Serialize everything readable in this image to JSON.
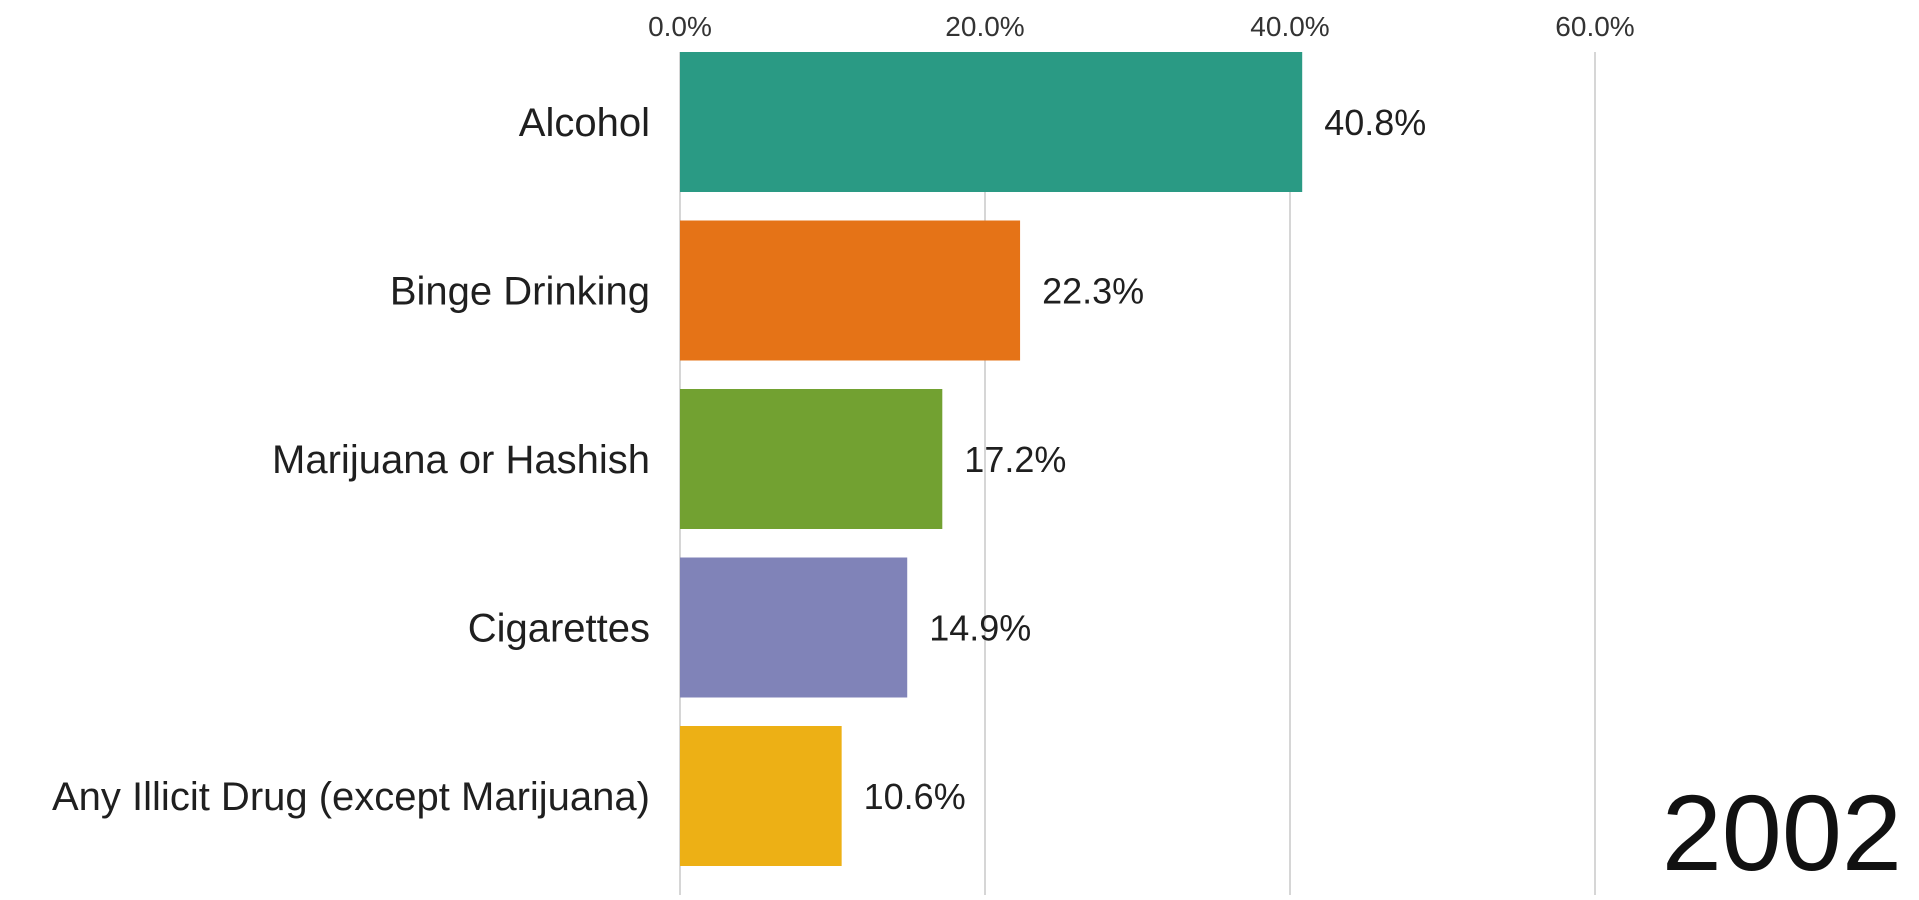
{
  "chart_data": {
    "type": "bar",
    "orientation": "horizontal",
    "title": "",
    "xlabel": "",
    "ylabel": "",
    "categories": [
      "Alcohol",
      "Binge Drinking",
      "Marijuana or Hashish",
      "Cigarettes",
      "Any Illicit Drug (except Marijuana)"
    ],
    "values": [
      40.8,
      22.3,
      17.2,
      14.9,
      10.6
    ],
    "value_labels": [
      "40.8%",
      "22.3%",
      "17.2%",
      "14.9%",
      "10.6%"
    ],
    "colors": [
      "#2a9a84",
      "#e57317",
      "#72a131",
      "#8083b8",
      "#edb015"
    ],
    "xlim": [
      0,
      70
    ],
    "x_ticks": [
      0,
      20,
      40,
      60
    ],
    "x_tick_labels": [
      "0.0%",
      "20.0%",
      "40.0%",
      "60.0%"
    ],
    "axis_position": "top",
    "grid": true,
    "legend": "none",
    "annotation": "2002"
  }
}
